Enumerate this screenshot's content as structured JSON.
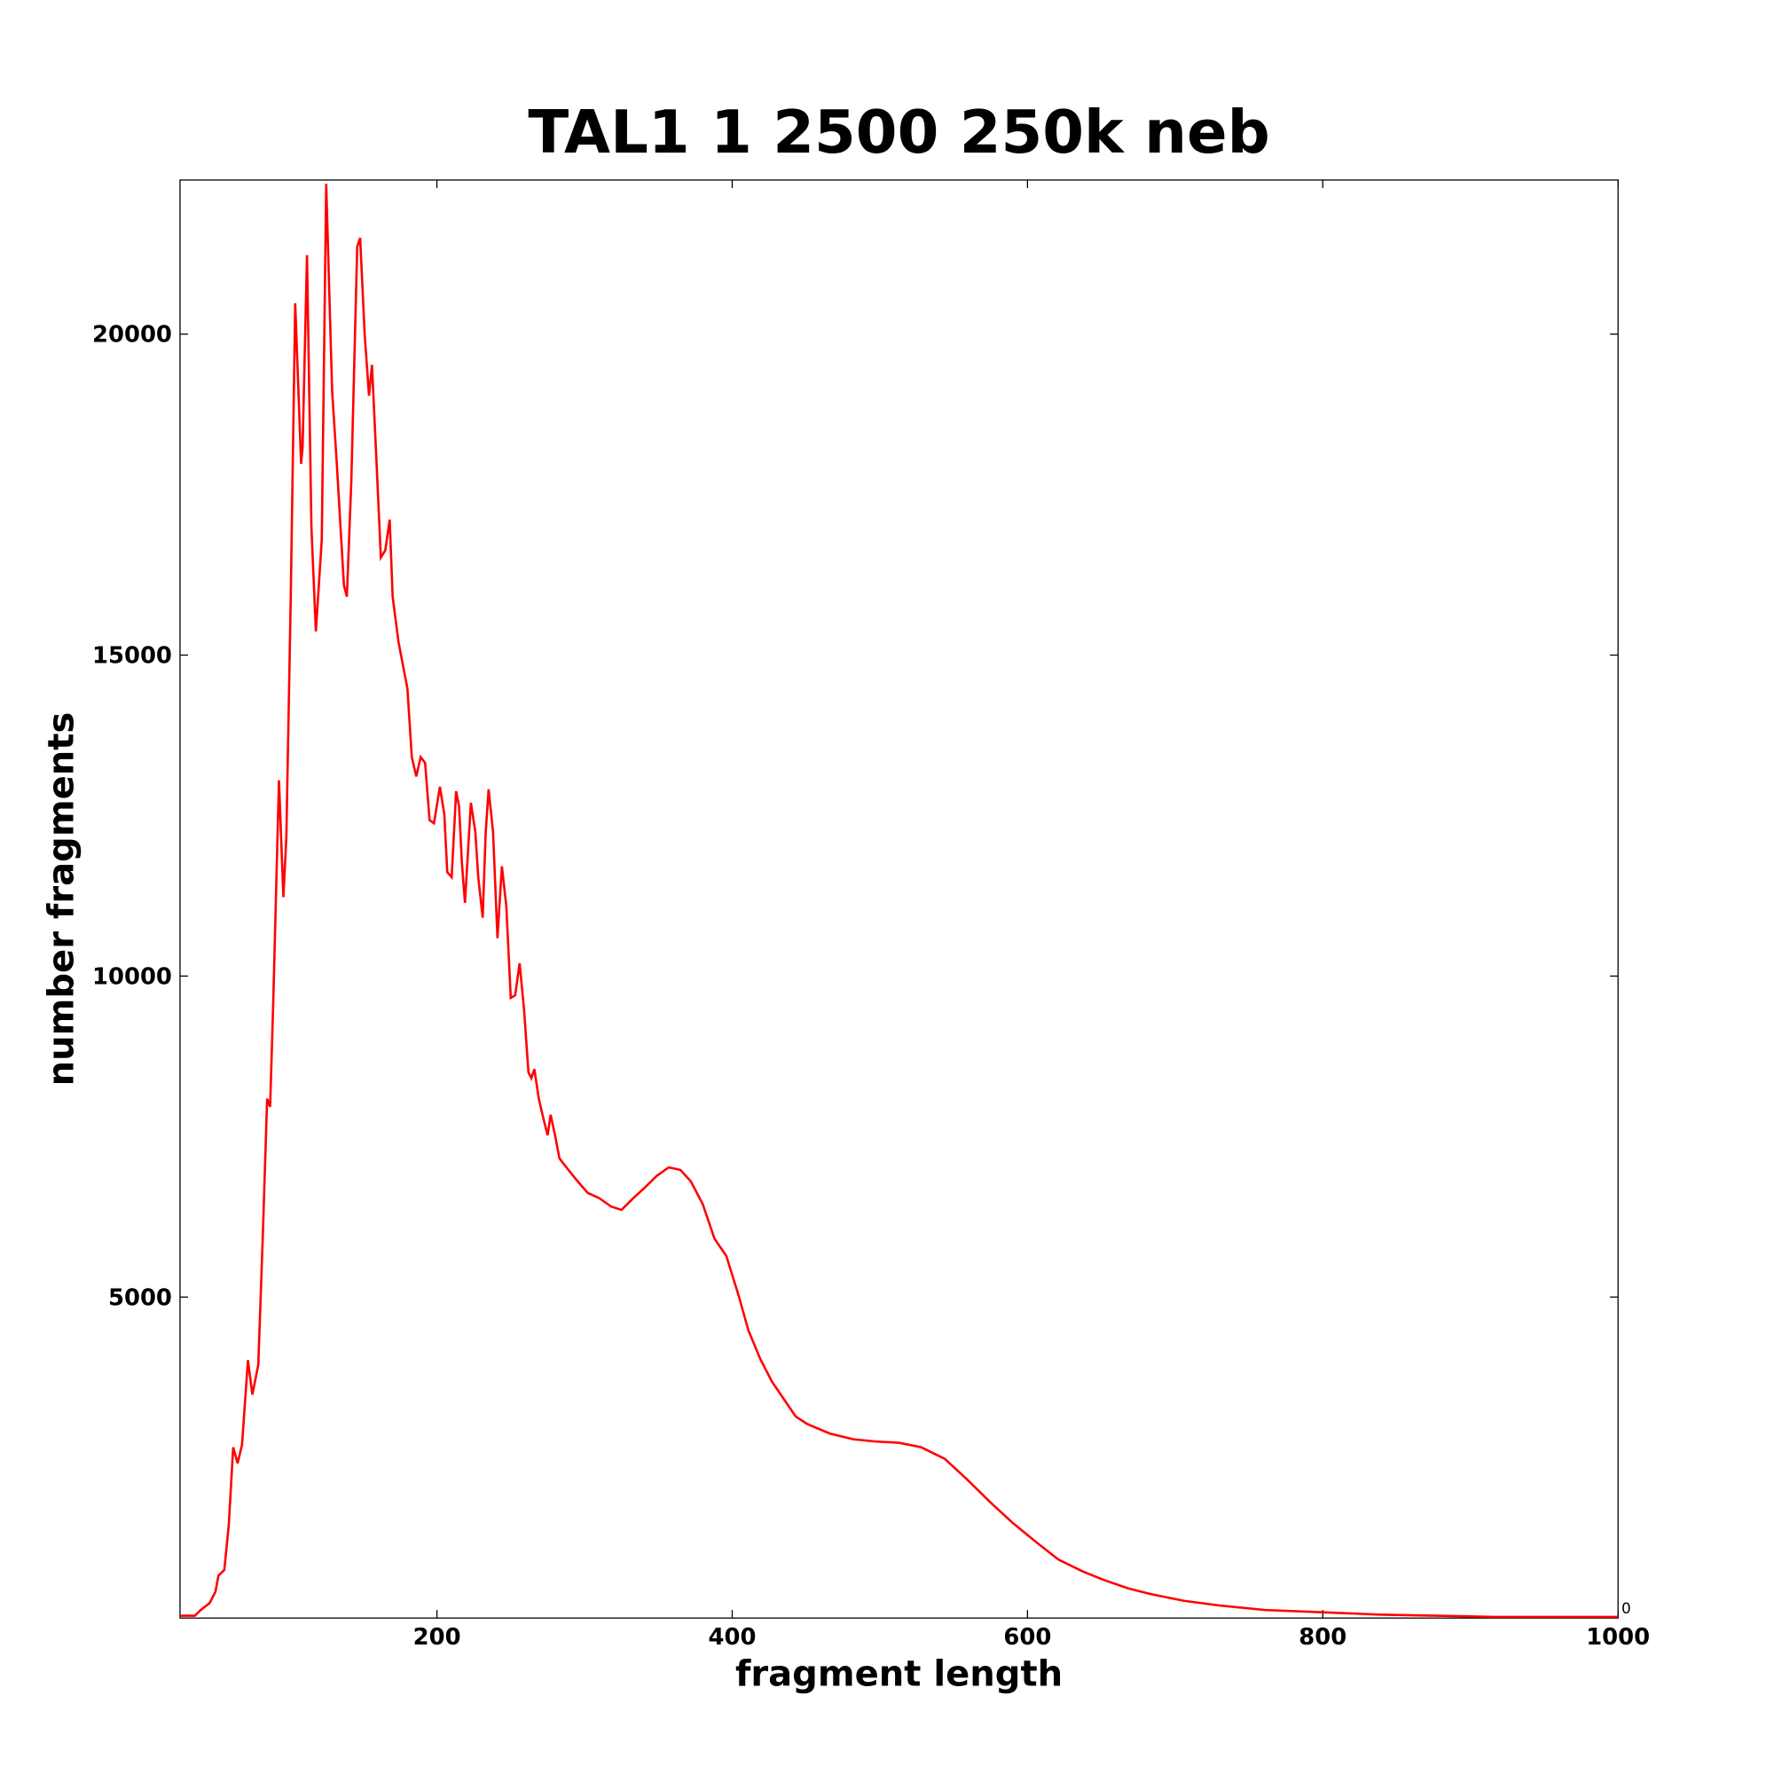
{
  "chart_data": {
    "type": "line",
    "title": "TAL1 1 2500 250k neb",
    "x_label": "fragment length",
    "y_label": "number fragments",
    "corner_label": "0",
    "color": "#ff0000",
    "xlim": [
      26,
      1000
    ],
    "ylim": [
      0,
      22400
    ],
    "xticks": [
      200,
      400,
      600,
      800,
      1000
    ],
    "yticks": [
      5000,
      10000,
      15000,
      20000
    ],
    "x": [
      26,
      36,
      40,
      46,
      50,
      52,
      56,
      59,
      62,
      65,
      68,
      72,
      75,
      79,
      82,
      85,
      87,
      89,
      93,
      96,
      98,
      101,
      104,
      108,
      109,
      112,
      115,
      118,
      122,
      125,
      129,
      132,
      137,
      139,
      142,
      146,
      148,
      151,
      154,
      156,
      159,
      162,
      165,
      168,
      170,
      174,
      177,
      180,
      183,
      186,
      189,
      192,
      195,
      198,
      202,
      205,
      207,
      210,
      213,
      215,
      217,
      219,
      223,
      226,
      228,
      231,
      233,
      235,
      238,
      241,
      244,
      247,
      250,
      253,
      256,
      259,
      262,
      264,
      266,
      269,
      272,
      275,
      277,
      280,
      283,
      286,
      294,
      302,
      310,
      318,
      325,
      333,
      341,
      349,
      357,
      365,
      372,
      380,
      388,
      396,
      404,
      411,
      419,
      427,
      435,
      443,
      451,
      466,
      482,
      497,
      513,
      528,
      544,
      559,
      575,
      590,
      606,
      621,
      637,
      652,
      668,
      683,
      706,
      730,
      761,
      800,
      838,
      877,
      916,
      955,
      1000
    ],
    "values": [
      36,
      36,
      125,
      232,
      410,
      660,
      750,
      1446,
      2660,
      2410,
      2700,
      4018,
      3480,
      3946,
      5910,
      8090,
      7964,
      9480,
      13050,
      11230,
      12160,
      15910,
      20480,
      17980,
      18230,
      21230,
      16980,
      15370,
      16800,
      22340,
      19120,
      18050,
      16090,
      15910,
      17700,
      21360,
      21500,
      20020,
      19040,
      19520,
      18050,
      16520,
      16630,
      17110,
      15910,
      15200,
      14840,
      14480,
      13410,
      13110,
      13410,
      13320,
      12430,
      12380,
      12950,
      12520,
      11620,
      11540,
      12880,
      12640,
      11730,
      11140,
      12700,
      12250,
      11540,
      10910,
      12230,
      12910,
      12250,
      10590,
      11710,
      11090,
      9660,
      9700,
      10200,
      9480,
      8500,
      8410,
      8550,
      8090,
      7790,
      7520,
      7840,
      7520,
      7160,
      7070,
      6840,
      6625,
      6540,
      6410,
      6357,
      6540,
      6710,
      6890,
      7020,
      6980,
      6800,
      6450,
      5910,
      5640,
      5050,
      4480,
      4036,
      3680,
      3410,
      3140,
      3020,
      2875,
      2785,
      2750,
      2730,
      2660,
      2480,
      2160,
      1800,
      1482,
      1180,
      910,
      730,
      590,
      464,
      375,
      268,
      196,
      125,
      90,
      54,
      36,
      18,
      18,
      18
    ]
  }
}
